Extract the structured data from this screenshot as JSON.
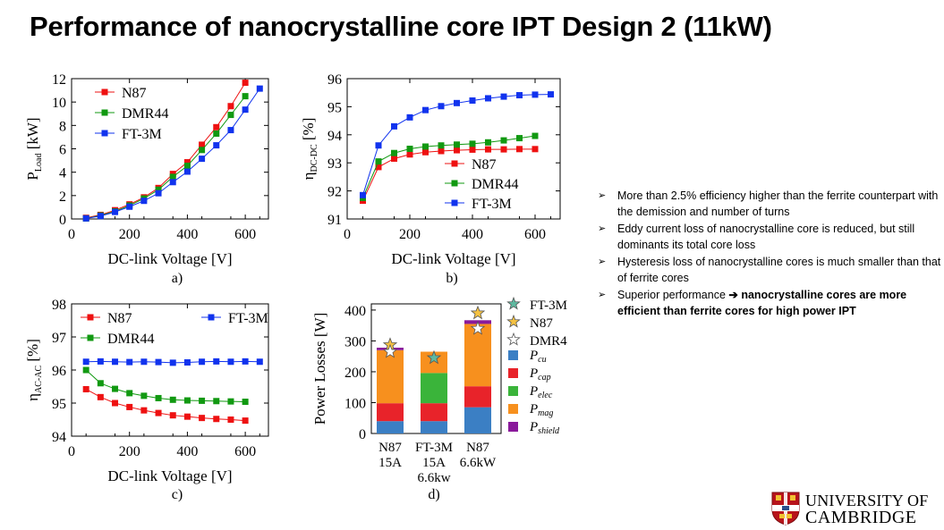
{
  "slide": {
    "title": "Performance of nanocrystalline core IPT Design 2 (11kW)",
    "bullets": [
      {
        "text": "More than 2.5% efficiency higher than the ferrite counterpart with the demission and number of turns"
      },
      {
        "text": "Eddy current loss of nanocrystalline core is reduced, but still dominants its total core loss"
      },
      {
        "text": "Hysteresis loss of nanocrystalline cores is much smaller than that of ferrite cores"
      },
      {
        "text_plain": "Superior performance ",
        "text_bold": "nanocrystalline cores are more efficient than ferrite cores for high power IPT"
      }
    ],
    "logo": {
      "line1": "UNIVERSITY OF",
      "line2": "CAMBRIDGE"
    },
    "bullet_icon": "arrow-bullet-icon",
    "inline_arrow_icon": "right-arrow-icon"
  },
  "colors": {
    "N87": "#ee1111",
    "DMR44": "#119911",
    "FT-3M": "#1133ee",
    "p_cu": "#3b7fc4",
    "p_cap": "#e8232a",
    "p_elec": "#3ab43a",
    "p_mag": "#f7901e",
    "p_shield": "#8a1a9b",
    "star_ft3m": "#5fb9a0",
    "star_n87": "#f5c242",
    "star_dmr": "#ffffff"
  },
  "chart_data": [
    {
      "id": "a",
      "type": "line",
      "caption": "a)",
      "xlabel": "DC-link Voltage  [V]",
      "ylabel_main": "P",
      "ylabel_sub": "Load",
      "ylabel_unit": "[kW]",
      "xlim": [
        0,
        680
      ],
      "ylim": [
        0,
        12
      ],
      "xticks": [
        0,
        200,
        400,
        600
      ],
      "yticks": [
        0,
        2,
        4,
        6,
        8,
        10,
        12
      ],
      "legend_position": "top-left",
      "series": [
        {
          "name": "N87",
          "x": [
            50,
            100,
            150,
            200,
            250,
            300,
            350,
            400,
            450,
            500,
            550,
            600
          ],
          "y": [
            0.1,
            0.35,
            0.75,
            1.25,
            1.85,
            2.65,
            3.85,
            4.85,
            6.35,
            7.85,
            9.65,
            11.65
          ]
        },
        {
          "name": "DMR44",
          "x": [
            50,
            100,
            150,
            200,
            250,
            300,
            350,
            400,
            450,
            500,
            550,
            600
          ],
          "y": [
            0.05,
            0.3,
            0.65,
            1.15,
            1.75,
            2.5,
            3.6,
            4.55,
            5.9,
            7.3,
            8.9,
            10.5
          ]
        },
        {
          "name": "FT-3M",
          "x": [
            50,
            100,
            150,
            200,
            250,
            300,
            350,
            400,
            450,
            500,
            550,
            600,
            650
          ],
          "y": [
            0.05,
            0.25,
            0.6,
            1.05,
            1.55,
            2.2,
            3.15,
            4.05,
            5.15,
            6.3,
            7.6,
            9.35,
            11.15
          ]
        }
      ]
    },
    {
      "id": "b",
      "type": "line",
      "caption": "b)",
      "xlabel": "DC-link Voltage  [V]",
      "ylabel_main": "η",
      "ylabel_sub": "DC-DC",
      "ylabel_unit": "[%]",
      "xlim": [
        0,
        680
      ],
      "ylim": [
        91,
        96
      ],
      "xticks": [
        0,
        200,
        400,
        600
      ],
      "yticks": [
        91,
        92,
        93,
        94,
        95,
        96
      ],
      "legend_position": "bottom-right",
      "series": [
        {
          "name": "N87",
          "x": [
            50,
            100,
            150,
            200,
            250,
            300,
            350,
            400,
            450,
            500,
            550,
            600
          ],
          "y": [
            91.65,
            92.85,
            93.15,
            93.3,
            93.38,
            93.42,
            93.45,
            93.47,
            93.48,
            93.48,
            93.49,
            93.49
          ]
        },
        {
          "name": "DMR44",
          "x": [
            50,
            100,
            150,
            200,
            250,
            300,
            350,
            400,
            450,
            500,
            550,
            600
          ],
          "y": [
            91.75,
            93.05,
            93.35,
            93.5,
            93.58,
            93.62,
            93.65,
            93.68,
            93.73,
            93.8,
            93.88,
            93.96
          ]
        },
        {
          "name": "FT-3M",
          "x": [
            50,
            100,
            150,
            200,
            250,
            300,
            350,
            400,
            450,
            500,
            550,
            600,
            650
          ],
          "y": [
            91.85,
            93.62,
            94.3,
            94.62,
            94.88,
            95.02,
            95.13,
            95.22,
            95.3,
            95.36,
            95.41,
            95.43,
            95.44
          ]
        }
      ]
    },
    {
      "id": "c",
      "type": "line",
      "caption": "c)",
      "xlabel": "DC-link Voltage  [V]",
      "ylabel_main": "η",
      "ylabel_sub": "AC-AC",
      "ylabel_unit": "[%]",
      "xlim": [
        0,
        680
      ],
      "ylim": [
        94,
        98
      ],
      "xticks": [
        0,
        200,
        400,
        600
      ],
      "yticks": [
        94,
        95,
        96,
        97,
        98
      ],
      "legend_position": "top",
      "series": [
        {
          "name": "N87",
          "x": [
            50,
            100,
            150,
            200,
            250,
            300,
            350,
            400,
            450,
            500,
            550,
            600
          ],
          "y": [
            95.42,
            95.18,
            95.0,
            94.88,
            94.78,
            94.7,
            94.63,
            94.59,
            94.55,
            94.52,
            94.5,
            94.47
          ]
        },
        {
          "name": "DMR44",
          "x": [
            50,
            100,
            150,
            200,
            250,
            300,
            350,
            400,
            450,
            500,
            550,
            600
          ],
          "y": [
            96.0,
            95.6,
            95.43,
            95.3,
            95.22,
            95.15,
            95.1,
            95.08,
            95.07,
            95.06,
            95.05,
            95.04
          ]
        },
        {
          "name": "FT-3M",
          "x": [
            50,
            100,
            150,
            200,
            250,
            300,
            350,
            400,
            450,
            500,
            550,
            600,
            650
          ],
          "y": [
            96.25,
            96.26,
            96.25,
            96.24,
            96.25,
            96.24,
            96.22,
            96.23,
            96.25,
            96.26,
            96.25,
            96.26,
            96.25
          ]
        }
      ]
    },
    {
      "id": "d",
      "type": "bar",
      "stacked": true,
      "caption": "d)",
      "ylabel": "Power Losses [W]",
      "ylim": [
        0,
        420
      ],
      "yticks": [
        0,
        100,
        200,
        300,
        400
      ],
      "categories": [
        {
          "line1": "N87",
          "line2": "15A",
          "line3": ""
        },
        {
          "line1": "FT-3M",
          "line2": "15A",
          "line3": "6.6kw"
        },
        {
          "line1": "N87",
          "line2": "6.6kW",
          "line3": ""
        }
      ],
      "series": [
        {
          "name": "P",
          "sub": "cu",
          "color_key": "p_cu",
          "values": [
            40,
            40,
            85
          ]
        },
        {
          "name": "P",
          "sub": "cap",
          "color_key": "p_cap",
          "values": [
            58,
            58,
            68
          ]
        },
        {
          "name": "P",
          "sub": "elec",
          "color_key": "p_elec",
          "values": [
            0,
            98,
            0
          ]
        },
        {
          "name": "P",
          "sub": "mag",
          "color_key": "p_mag",
          "values": [
            172,
            69,
            202
          ]
        },
        {
          "name": "P",
          "sub": "shield",
          "color_key": "p_shield",
          "values": [
            8,
            0,
            12
          ]
        }
      ],
      "star_markers": [
        {
          "name": "FT-3M",
          "color_key": "star_ft3m",
          "category_index": 1,
          "value": 245
        },
        {
          "name": "N87",
          "color_key": "star_n87",
          "category_index": 0,
          "value": 287
        },
        {
          "name": "N87",
          "color_key": "star_n87",
          "category_index": 2,
          "value": 390
        },
        {
          "name": "DMR4",
          "color_key": "star_dmr",
          "category_index": 0,
          "value": 265
        },
        {
          "name": "DMR4",
          "color_key": "star_dmr",
          "category_index": 2,
          "value": 340
        }
      ],
      "legend_position": "right",
      "legend_markers": [
        {
          "label": "FT-3M",
          "color_key": "star_ft3m"
        },
        {
          "label": "N87",
          "color_key": "star_n87"
        },
        {
          "label": "DMR4",
          "color_key": "star_dmr"
        }
      ]
    }
  ]
}
